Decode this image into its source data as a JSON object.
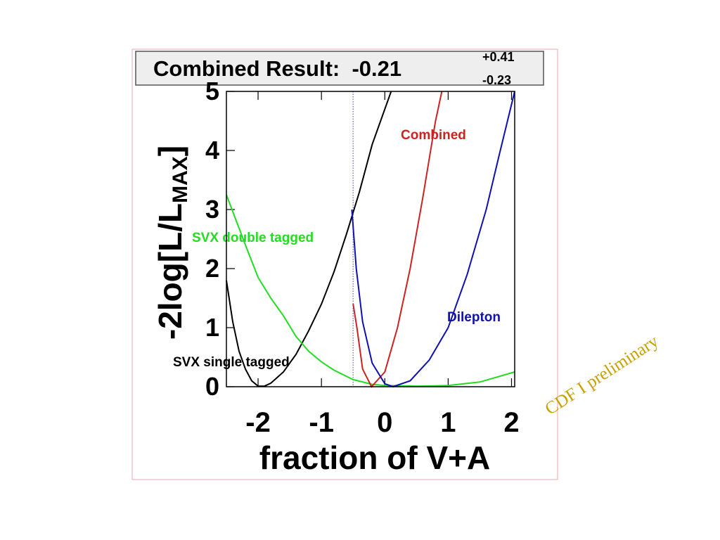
{
  "chart_data": {
    "type": "line",
    "title": "Combined Result:  -0.21",
    "title_error_up": "+0.41",
    "title_error_down": "-0.23",
    "xlabel": "fraction of V+A",
    "ylabel": {
      "text": "-2log[L/L",
      "subscript": "MAX",
      "close": "]"
    },
    "annotation": {
      "text": "CDF I preliminary",
      "color": "#c8a000"
    },
    "xlim": [
      -2.5,
      2.05
    ],
    "ylim": [
      0,
      5
    ],
    "xticks": [
      -2,
      -1,
      0,
      1,
      2
    ],
    "yticks": [
      0,
      1,
      2,
      3,
      4,
      5
    ],
    "reference_line": {
      "x": -0.5,
      "color": "#8080c0"
    },
    "series": [
      {
        "name": "SVX single tagged",
        "color": "#000000",
        "x": [
          -2.5,
          -2.4,
          -2.3,
          -2.2,
          -2.1,
          -2.0,
          -1.9,
          -1.8,
          -1.6,
          -1.4,
          -1.2,
          -1.0,
          -0.8,
          -0.6,
          -0.4,
          -0.2,
          0,
          0.1
        ],
        "values": [
          1.8,
          1.1,
          0.6,
          0.3,
          0.1,
          0.01,
          0.01,
          0.06,
          0.25,
          0.55,
          0.95,
          1.4,
          1.95,
          2.6,
          3.3,
          4.1,
          4.7,
          5
        ]
      },
      {
        "name": "SVX double tagged",
        "color": "#22dd22",
        "x": [
          -2.5,
          -2.2,
          -2.0,
          -1.8,
          -1.6,
          -1.4,
          -1.2,
          -1.0,
          -0.8,
          -0.5,
          -0.2,
          0,
          0.5,
          1.0,
          1.5,
          2.05
        ],
        "values": [
          3.25,
          2.4,
          1.85,
          1.5,
          1.2,
          0.85,
          0.6,
          0.42,
          0.28,
          0.12,
          0.04,
          0.02,
          0.01,
          0.02,
          0.08,
          0.25
        ]
      },
      {
        "name": "Combined",
        "color": "#cc2222",
        "x": [
          -0.5,
          -0.44,
          -0.35,
          -0.21,
          0,
          0.2,
          0.4,
          0.6,
          0.8,
          0.9
        ],
        "values": [
          1.4,
          1.0,
          0.3,
          0,
          0.25,
          1.0,
          2.0,
          3.2,
          4.5,
          5
        ]
      },
      {
        "name": "Dilepton",
        "color": "#1010b0",
        "x": [
          -0.52,
          -0.45,
          -0.35,
          -0.2,
          0,
          0.13,
          0.4,
          0.7,
          1.0,
          1.3,
          1.6,
          1.8,
          2.05
        ],
        "values": [
          3.0,
          2.0,
          1.1,
          0.4,
          0.05,
          0,
          0.1,
          0.45,
          1.0,
          1.9,
          3.0,
          3.9,
          5
        ]
      }
    ]
  }
}
